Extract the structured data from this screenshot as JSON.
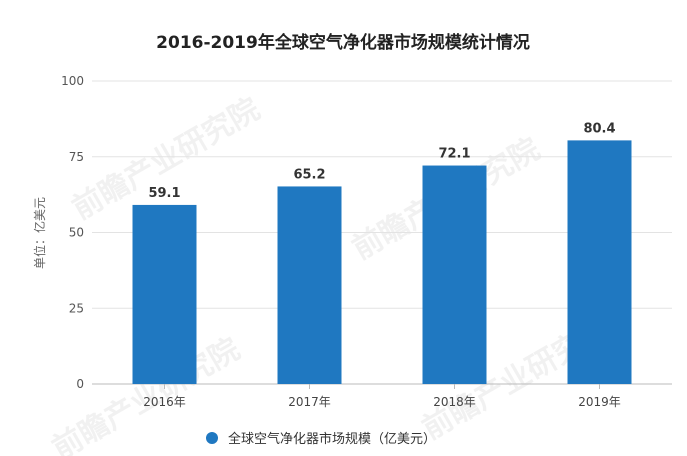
{
  "chart_data": {
    "type": "bar",
    "title": "2016-2019年全球空气净化器市场规模统计情况",
    "ylabel": "单位：亿美元",
    "xlabel": "",
    "categories": [
      "2016年",
      "2017年",
      "2018年",
      "2019年"
    ],
    "series": [
      {
        "name": "全球空气净化器市场规模（亿美元）",
        "values": [
          59.1,
          65.2,
          72.1,
          80.4
        ]
      }
    ],
    "data_labels": [
      "59.1",
      "65.2",
      "72.1",
      "80.4"
    ],
    "ylim": [
      0,
      100
    ],
    "yticks": [
      "0",
      "25",
      "50",
      "75",
      "100"
    ],
    "grid": true,
    "legend_position": "bottom",
    "colors": {
      "bar": "#1F78C1",
      "grid": "#E3E3E3",
      "axis": "#BBBBBB"
    }
  },
  "watermark": {
    "text": "前瞻产业研究院"
  }
}
